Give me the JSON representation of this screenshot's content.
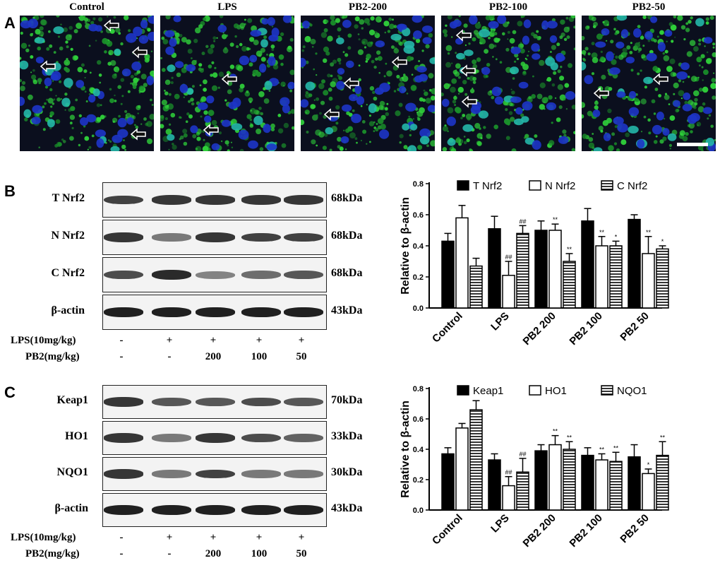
{
  "panel_letters": [
    "A",
    "B",
    "C"
  ],
  "micrograph_titles": [
    "Control",
    "LPS",
    "PB2-200",
    "PB2-100",
    "PB2-50"
  ],
  "blot_B": {
    "rows": [
      {
        "label": "T Nrf2",
        "kda": "68kDa",
        "intensity": [
          0.8,
          0.85,
          0.85,
          0.85,
          0.85
        ]
      },
      {
        "label": "N Nrf2",
        "kda": "68kDa",
        "intensity": [
          0.85,
          0.55,
          0.85,
          0.8,
          0.8
        ]
      },
      {
        "label": "C Nrf2",
        "kda": "68kDa",
        "intensity": [
          0.75,
          0.9,
          0.5,
          0.6,
          0.7
        ]
      },
      {
        "label": "β-actin",
        "kda": "43kDa",
        "intensity": [
          0.95,
          0.95,
          0.95,
          0.95,
          0.95
        ]
      }
    ],
    "lps_label": "LPS(10mg/kg)",
    "lps_values": [
      "-",
      "+",
      "+",
      "+",
      "+"
    ],
    "pb2_label": "PB2(mg/kg)",
    "pb2_values": [
      "-",
      "-",
      "200",
      "100",
      "50"
    ]
  },
  "blot_C": {
    "rows": [
      {
        "label": "Keap1",
        "kda": "70kDa",
        "intensity": [
          0.85,
          0.7,
          0.7,
          0.75,
          0.7
        ]
      },
      {
        "label": "HO1",
        "kda": "33kDa",
        "intensity": [
          0.85,
          0.55,
          0.85,
          0.75,
          0.65
        ]
      },
      {
        "label": "NQO1",
        "kda": "30kDa",
        "intensity": [
          0.85,
          0.55,
          0.8,
          0.55,
          0.55
        ]
      },
      {
        "label": "β-actin",
        "kda": "43kDa",
        "intensity": [
          0.95,
          0.95,
          0.95,
          0.95,
          0.95
        ]
      }
    ],
    "lps_label": "LPS(10mg/kg)",
    "lps_values": [
      "-",
      "+",
      "+",
      "+",
      "+"
    ],
    "pb2_label": "PB2(mg/kg)",
    "pb2_values": [
      "-",
      "-",
      "200",
      "100",
      "50"
    ]
  },
  "chart_data": [
    {
      "type": "bar",
      "ylabel": "Relative to β-actin",
      "ylim": [
        0,
        0.8
      ],
      "yticks": [
        "0.0",
        "0.2",
        "0.4",
        "0.6",
        "0.8"
      ],
      "categories": [
        "Control",
        "LPS",
        "PB2 200",
        "PB2 100",
        "PB2 50"
      ],
      "legend_position": "top",
      "series": [
        {
          "name": "T Nrf2",
          "fill": "solid",
          "values": [
            0.43,
            0.51,
            0.5,
            0.56,
            0.57
          ],
          "errors": [
            0.05,
            0.08,
            0.06,
            0.08,
            0.03
          ],
          "sig": [
            "",
            "",
            "",
            "",
            ""
          ]
        },
        {
          "name": "N Nrf2",
          "fill": "open",
          "values": [
            0.58,
            0.21,
            0.5,
            0.4,
            0.35
          ],
          "errors": [
            0.08,
            0.09,
            0.04,
            0.06,
            0.11
          ],
          "sig": [
            "",
            "##",
            "**",
            "**",
            "**"
          ]
        },
        {
          "name": "C Nrf2",
          "fill": "striped",
          "values": [
            0.27,
            0.48,
            0.3,
            0.4,
            0.38
          ],
          "errors": [
            0.05,
            0.05,
            0.05,
            0.03,
            0.02
          ],
          "sig": [
            "",
            "##",
            "**",
            "*",
            "*"
          ]
        }
      ]
    },
    {
      "type": "bar",
      "ylabel": "Relative to β-actin",
      "ylim": [
        0,
        0.8
      ],
      "yticks": [
        "0.0",
        "0.2",
        "0.4",
        "0.6",
        "0.8"
      ],
      "categories": [
        "Control",
        "LPS",
        "PB2 200",
        "PB2 100",
        "PB2 50"
      ],
      "legend_position": "top",
      "series": [
        {
          "name": "Keap1",
          "fill": "solid",
          "values": [
            0.37,
            0.33,
            0.39,
            0.36,
            0.35
          ],
          "errors": [
            0.04,
            0.04,
            0.04,
            0.05,
            0.08
          ],
          "sig": [
            "",
            "",
            "",
            "",
            ""
          ]
        },
        {
          "name": "HO1",
          "fill": "open",
          "values": [
            0.54,
            0.16,
            0.43,
            0.33,
            0.24
          ],
          "errors": [
            0.03,
            0.06,
            0.06,
            0.04,
            0.03
          ],
          "sig": [
            "",
            "##",
            "**",
            "**",
            "*"
          ]
        },
        {
          "name": "NQO1",
          "fill": "striped",
          "values": [
            0.66,
            0.25,
            0.4,
            0.32,
            0.36
          ],
          "errors": [
            0.06,
            0.09,
            0.05,
            0.06,
            0.09
          ],
          "sig": [
            "",
            "##",
            "**",
            "**",
            "**"
          ]
        }
      ]
    }
  ]
}
